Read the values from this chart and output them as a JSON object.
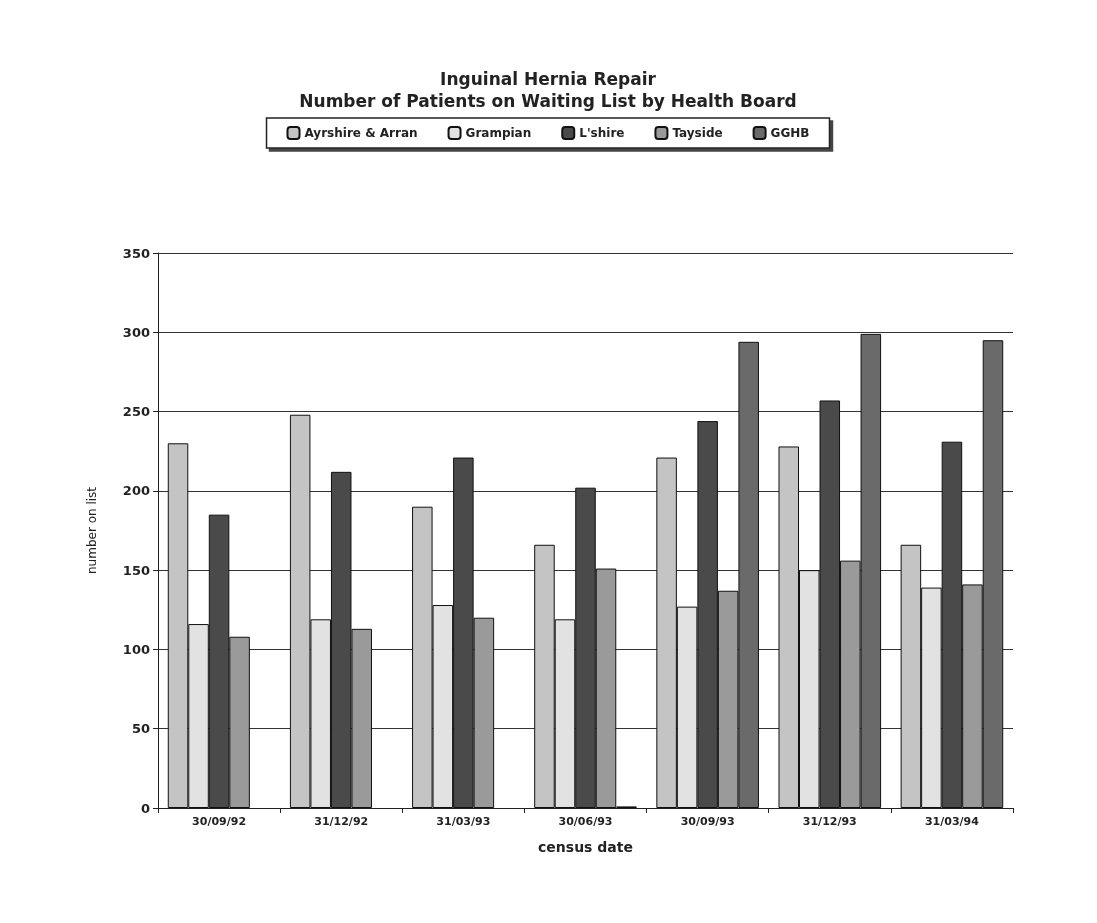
{
  "chart_data": {
    "type": "bar",
    "title": "Inguinal Hernia Repair\nNumber of Patients on Waiting List by Health Board",
    "xlabel": "census date",
    "ylabel": "number on list",
    "categories": [
      "30/09/92",
      "31/12/92",
      "31/03/93",
      "30/06/93",
      "30/09/93",
      "31/12/93",
      "31/03/94"
    ],
    "series": [
      {
        "name": "Ayrshire & Arran",
        "color": "#c4c4c4",
        "values": [
          230,
          248,
          190,
          166,
          221,
          228,
          166
        ]
      },
      {
        "name": "Grampian",
        "color": "#e2e2e2",
        "values": [
          116,
          119,
          128,
          119,
          127,
          150,
          139
        ]
      },
      {
        "name": "L'shire",
        "color": "#4a4a4a",
        "values": [
          185,
          212,
          221,
          202,
          244,
          257,
          231
        ]
      },
      {
        "name": "Tayside",
        "color": "#9a9a9a",
        "values": [
          108,
          113,
          120,
          151,
          137,
          156,
          141
        ]
      },
      {
        "name": "GGHB",
        "color": "#6a6a6a",
        "values": [
          null,
          null,
          null,
          1,
          294,
          299,
          295
        ]
      }
    ],
    "ylim": [
      0,
      350
    ],
    "yticks": [
      0,
      50,
      100,
      150,
      200,
      250,
      300,
      350
    ],
    "grid": "y",
    "legend": "top"
  }
}
